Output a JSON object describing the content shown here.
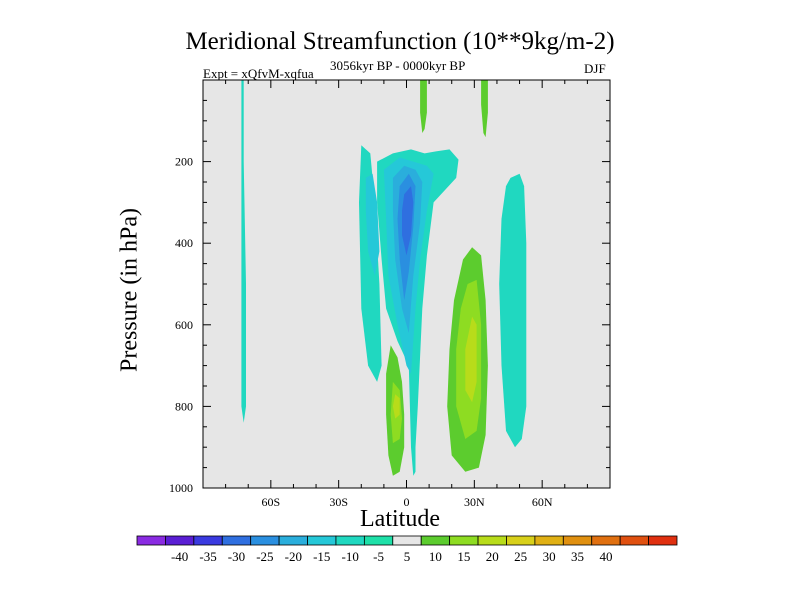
{
  "chart_data": {
    "type": "heatmap",
    "title": "Meridional Streamfunction (10**9kg/m-2)",
    "subtitle_left": "Expt = xQfvM-xqfua",
    "subtitle_center": "3056kyr BP - 0000kyr BP",
    "subtitle_right": "DJF",
    "xlabel": "Latitude",
    "ylabel": "Pressure (in hPa)",
    "xlim": [
      -90,
      90
    ],
    "ylim": [
      0,
      1000
    ],
    "x_ticks": [
      {
        "value": -60,
        "label": "60S"
      },
      {
        "value": -30,
        "label": "30S"
      },
      {
        "value": 0,
        "label": "0"
      },
      {
        "value": 30,
        "label": "30N"
      },
      {
        "value": 60,
        "label": "60N"
      }
    ],
    "y_ticks": [
      {
        "value": 200,
        "label": "200"
      },
      {
        "value": 400,
        "label": "400"
      },
      {
        "value": 600,
        "label": "600"
      },
      {
        "value": 800,
        "label": "800"
      },
      {
        "value": 1000,
        "label": "1000"
      }
    ],
    "colorbar": {
      "labels": [
        "-40",
        "-35",
        "-30",
        "-25",
        "-20",
        "-15",
        "-10",
        "-5",
        "5",
        "10",
        "15",
        "20",
        "25",
        "30",
        "35",
        "40"
      ],
      "colors": [
        "#8a2be2",
        "#5a1ed4",
        "#3a3ae0",
        "#2f6fe0",
        "#2a8fe0",
        "#2aaedc",
        "#25c8d8",
        "#20d8c0",
        "#1ee0a8",
        "#e6e6e6",
        "#5ccc2e",
        "#8edc22",
        "#b8dc1a",
        "#d8d01a",
        "#e0b014",
        "#e09010",
        "#e07010",
        "#e05010",
        "#e03010"
      ]
    },
    "fields": [
      {
        "name": "weak negative cell 70S",
        "level": -7,
        "color": "#20d8c0",
        "points": [
          [
            -73,
            0
          ],
          [
            -72,
            0
          ],
          [
            -72,
            200
          ],
          [
            -71,
            500
          ],
          [
            -71,
            800
          ],
          [
            -72,
            840
          ],
          [
            -73,
            800
          ],
          [
            -73,
            500
          ],
          [
            -73,
            200
          ]
        ]
      },
      {
        "name": "tropical negative envelope",
        "level": -7,
        "color": "#20d8c0",
        "points": [
          [
            -20,
            160
          ],
          [
            -16,
            180
          ],
          [
            -14,
            300
          ],
          [
            -12,
            500
          ],
          [
            -11,
            700
          ],
          [
            -13,
            740
          ],
          [
            -17,
            700
          ],
          [
            -20,
            560
          ],
          [
            -21,
            300
          ]
        ]
      },
      {
        "name": "central negative envelope",
        "level": -7,
        "color": "#20d8c0",
        "points": [
          [
            -13,
            200
          ],
          [
            -6,
            180
          ],
          [
            2,
            170
          ],
          [
            8,
            180
          ],
          [
            13,
            175
          ],
          [
            19,
            170
          ],
          [
            23,
            195
          ],
          [
            22,
            240
          ],
          [
            12,
            300
          ],
          [
            9,
            430
          ],
          [
            7,
            560
          ],
          [
            5,
            800
          ],
          [
            4,
            900
          ],
          [
            4,
            960
          ],
          [
            3,
            970
          ],
          [
            2,
            900
          ],
          [
            1,
            700
          ],
          [
            -4,
            640
          ],
          [
            -9,
            560
          ],
          [
            -11,
            440
          ],
          [
            -13,
            300
          ]
        ]
      },
      {
        "name": "central negative -10",
        "level": -12,
        "color": "#25c8d8",
        "points": [
          [
            -10,
            220
          ],
          [
            -3,
            190
          ],
          [
            3,
            200
          ],
          [
            9,
            210
          ],
          [
            12,
            230
          ],
          [
            9,
            320
          ],
          [
            6,
            440
          ],
          [
            4,
            560
          ],
          [
            2,
            720
          ],
          [
            0,
            700
          ],
          [
            -4,
            600
          ],
          [
            -8,
            480
          ],
          [
            -9,
            340
          ]
        ]
      },
      {
        "name": "central negative -15",
        "level": -17,
        "color": "#2aaedc",
        "points": [
          [
            -6,
            240
          ],
          [
            -1,
            210
          ],
          [
            4,
            220
          ],
          [
            7,
            250
          ],
          [
            6,
            350
          ],
          [
            3,
            480
          ],
          [
            1,
            620
          ],
          [
            -2,
            560
          ],
          [
            -5,
            440
          ],
          [
            -6,
            320
          ]
        ]
      },
      {
        "name": "central negative -20",
        "level": -22,
        "color": "#2a8fe0",
        "points": [
          [
            -3,
            260
          ],
          [
            1,
            230
          ],
          [
            4,
            260
          ],
          [
            3,
            360
          ],
          [
            1,
            470
          ],
          [
            -1,
            540
          ],
          [
            -3,
            440
          ],
          [
            -4,
            340
          ]
        ]
      },
      {
        "name": "central negative core",
        "level": -27,
        "color": "#2f6fe0",
        "points": [
          [
            -1,
            280
          ],
          [
            2,
            260
          ],
          [
            3,
            300
          ],
          [
            2,
            380
          ],
          [
            0,
            430
          ],
          [
            -2,
            380
          ],
          [
            -2,
            320
          ]
        ]
      },
      {
        "name": "southern negative -10",
        "level": -12,
        "color": "#25c8d8",
        "points": [
          [
            -18,
            240
          ],
          [
            -15,
            230
          ],
          [
            -13,
            300
          ],
          [
            -12,
            420
          ],
          [
            -14,
            480
          ],
          [
            -17,
            420
          ],
          [
            -18,
            320
          ]
        ]
      },
      {
        "name": "upper positive near 5N",
        "level": 7,
        "color": "#5ccc2e",
        "points": [
          [
            6,
            0
          ],
          [
            9,
            0
          ],
          [
            9,
            80
          ],
          [
            8,
            120
          ],
          [
            7,
            130
          ],
          [
            6,
            80
          ]
        ]
      },
      {
        "name": "upper positive near 30N",
        "level": 7,
        "color": "#5ccc2e",
        "points": [
          [
            33,
            0
          ],
          [
            36,
            0
          ],
          [
            36,
            80
          ],
          [
            35,
            140
          ],
          [
            34,
            130
          ],
          [
            33,
            60
          ]
        ]
      },
      {
        "name": "southern positive envelope",
        "level": 7,
        "color": "#5ccc2e",
        "points": [
          [
            -7,
            650
          ],
          [
            -4,
            680
          ],
          [
            -2,
            740
          ],
          [
            -1,
            820
          ],
          [
            -1,
            900
          ],
          [
            -3,
            960
          ],
          [
            -6,
            970
          ],
          [
            -8,
            920
          ],
          [
            -9,
            820
          ],
          [
            -9,
            720
          ]
        ]
      },
      {
        "name": "southern positive 10",
        "level": 12,
        "color": "#8edc22",
        "points": [
          [
            -6,
            740
          ],
          [
            -3,
            760
          ],
          [
            -2,
            830
          ],
          [
            -3,
            880
          ],
          [
            -6,
            890
          ],
          [
            -7,
            820
          ]
        ]
      },
      {
        "name": "southern positive 15",
        "level": 17,
        "color": "#b8dc1a",
        "points": [
          [
            -5,
            770
          ],
          [
            -3,
            780
          ],
          [
            -3,
            820
          ],
          [
            -5,
            830
          ],
          [
            -6,
            800
          ]
        ]
      },
      {
        "name": "northern positive envelope",
        "level": 7,
        "color": "#5ccc2e",
        "points": [
          [
            25,
            440
          ],
          [
            29,
            410
          ],
          [
            33,
            430
          ],
          [
            35,
            540
          ],
          [
            36,
            700
          ],
          [
            35,
            870
          ],
          [
            32,
            950
          ],
          [
            26,
            960
          ],
          [
            20,
            920
          ],
          [
            18,
            800
          ],
          [
            19,
            660
          ],
          [
            21,
            540
          ]
        ]
      },
      {
        "name": "northern positive 10",
        "level": 12,
        "color": "#8edc22",
        "points": [
          [
            27,
            500
          ],
          [
            31,
            490
          ],
          [
            33,
            600
          ],
          [
            33,
            780
          ],
          [
            31,
            860
          ],
          [
            26,
            880
          ],
          [
            22,
            800
          ],
          [
            22,
            660
          ],
          [
            24,
            560
          ]
        ]
      },
      {
        "name": "northern positive 15",
        "level": 17,
        "color": "#b8dc1a",
        "points": [
          [
            29,
            580
          ],
          [
            31,
            600
          ],
          [
            31,
            740
          ],
          [
            29,
            790
          ],
          [
            26,
            760
          ],
          [
            26,
            660
          ]
        ]
      },
      {
        "name": "northern negative cell 50N",
        "level": -7,
        "color": "#20d8c0",
        "points": [
          [
            46,
            240
          ],
          [
            50,
            230
          ],
          [
            52,
            260
          ],
          [
            53,
            400
          ],
          [
            53,
            600
          ],
          [
            53,
            800
          ],
          [
            51,
            880
          ],
          [
            48,
            900
          ],
          [
            44,
            860
          ],
          [
            42,
            700
          ],
          [
            41,
            500
          ],
          [
            42,
            340
          ],
          [
            44,
            260
          ]
        ]
      }
    ]
  }
}
